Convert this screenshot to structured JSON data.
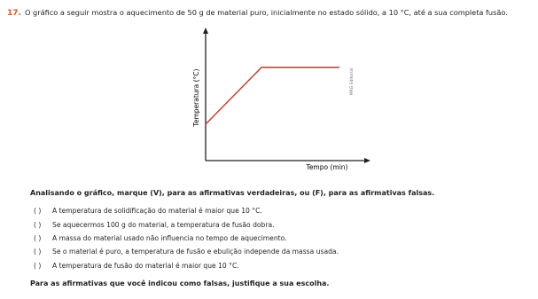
{
  "question": {
    "number": "17.",
    "text": "O gráfico a seguir mostra o aquecimento de 50 g de material puro, inicialmente no estado sólido, a 10 °C, até a sua completa fusão."
  },
  "figure": {
    "y_label": "Temperatura (°C)",
    "x_label": "Tempo (min)",
    "credit": "MRG Editorial"
  },
  "instruction": "Analisando o gráfico, marque (V), para as afirmativas verdadeiras, ou (F), para as afirmativas falsas.",
  "items": [
    {
      "box": "(   )",
      "text": "A temperatura de solidificação do material é maior que 10 °C."
    },
    {
      "box": "(   )",
      "text": "Se aquecermos 100 g do material, a temperatura de fusão dobra."
    },
    {
      "box": "(   )",
      "text": "A massa do material usado não influencia no tempo de aquecimento."
    },
    {
      "box": "(   )",
      "text": "Se o material é puro, a temperatura de fusão e ebulição independe da massa usada."
    },
    {
      "box": "(   )",
      "text": "A temperatura de fusão do material é maior que 10 °C."
    }
  ],
  "closing": "Para as afirmativas que você indicou como falsas, justifique a sua escolha."
}
